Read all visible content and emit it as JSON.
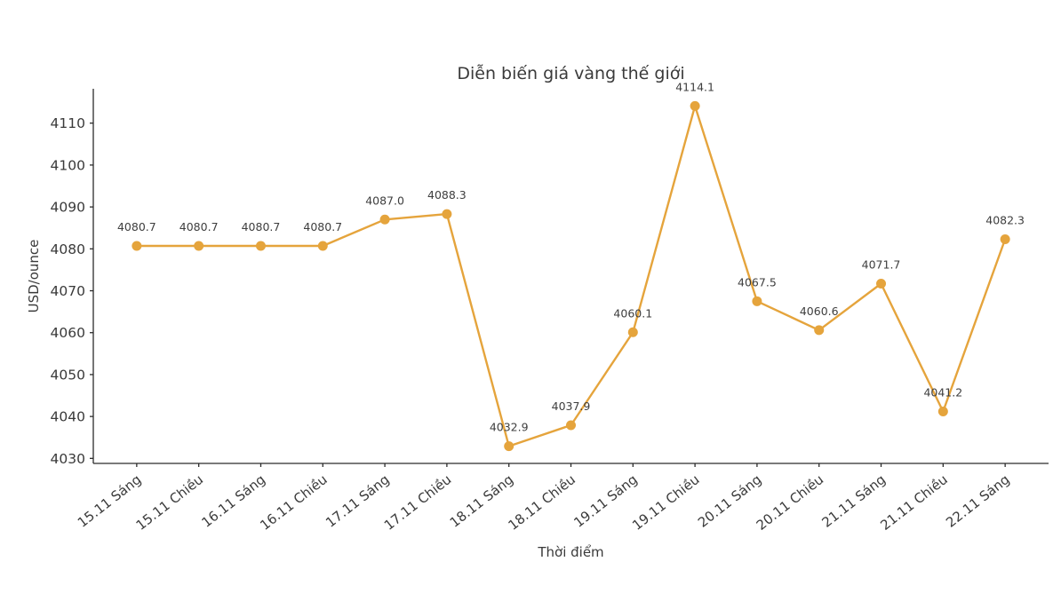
{
  "chart_data": {
    "type": "line",
    "title": "Diễn biến giá vàng thế giới",
    "xlabel": "Thời điểm",
    "ylabel": "USD/ounce",
    "categories": [
      "15.11 Sáng",
      "15.11 Chiều",
      "16.11 Sáng",
      "16.11 Chiều",
      "17.11 Sáng",
      "17.11 Chiều",
      "18.11 Sáng",
      "18.11 Chiều",
      "19.11 Sáng",
      "19.11 Chiều",
      "20.11 Sáng",
      "20.11 Chiều",
      "21.11 Sáng",
      "21.11 Chiều",
      "22.11 Sáng"
    ],
    "values": [
      4080.7,
      4080.7,
      4080.7,
      4080.7,
      4087.0,
      4088.3,
      4032.9,
      4037.9,
      4060.1,
      4114.1,
      4067.5,
      4060.6,
      4071.7,
      4041.2,
      4082.3
    ],
    "yticks": [
      4030,
      4040,
      4050,
      4060,
      4070,
      4080,
      4090,
      4100,
      4110
    ],
    "ylim": [
      4028.8,
      4118.2
    ],
    "grid": false,
    "legend_position": "none",
    "data_labels_shown": true,
    "x_tick_rotation_deg": 38,
    "line_color": "#E5A43C",
    "marker_color": "#E5A43C",
    "axis_color": "#2b2b2b",
    "tick_label_color": "#3a3a3a",
    "data_label_color": "#3e3e3e"
  }
}
